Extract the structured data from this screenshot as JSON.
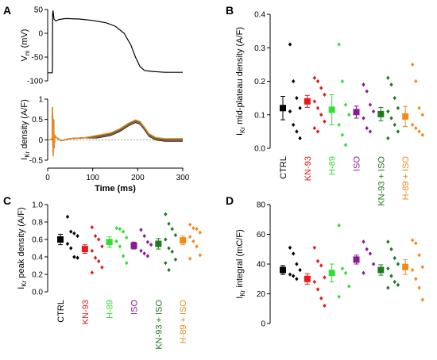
{
  "colors": {
    "CTRL": "#000000",
    "KN-93": "#e41a1c",
    "H-89": "#33dd33",
    "ISO": "#8a1a96",
    "KN-93 + ISO": "#1f7a1f",
    "H-89 + ISO": "#f28a1a"
  },
  "groups": [
    "CTRL",
    "KN-93",
    "H-89",
    "ISO",
    "KN-93 + ISO",
    "H-89 + ISO"
  ],
  "chart_data": [
    {
      "panel": "A",
      "type": "line",
      "traces": [
        {
          "ylabel": "V_m (mV)",
          "ylim": [
            -100,
            50
          ],
          "yticks": [
            -100,
            -50,
            0,
            50
          ],
          "points": [
            [
              0,
              -83
            ],
            [
              5,
              -83
            ],
            [
              10,
              -83
            ],
            [
              10.5,
              -70
            ],
            [
              11,
              40
            ],
            [
              12,
              48
            ],
            [
              14,
              30
            ],
            [
              18,
              26
            ],
            [
              25,
              29
            ],
            [
              40,
              31
            ],
            [
              70,
              30
            ],
            [
              100,
              27
            ],
            [
              130,
              22
            ],
            [
              150,
              15
            ],
            [
              170,
              0
            ],
            [
              185,
              -25
            ],
            [
              195,
              -50
            ],
            [
              205,
              -70
            ],
            [
              215,
              -78
            ],
            [
              230,
              -80
            ],
            [
              260,
              -82
            ],
            [
              300,
              -82
            ]
          ]
        },
        {
          "ylabel": "I_Kr density (A/F)",
          "ylim": [
            -0.5,
            1.0
          ],
          "yticks": [
            -0.5,
            0.0,
            0.5,
            1.0
          ],
          "series_colors": [
            "CTRL",
            "KN-93",
            "H-89",
            "ISO",
            "KN-93 + ISO",
            "H-89 + ISO"
          ],
          "points": [
            [
              0,
              0
            ],
            [
              8,
              0
            ],
            [
              10,
              0.05
            ],
            [
              11,
              0.8
            ],
            [
              12,
              -0.4
            ],
            [
              13,
              0.5
            ],
            [
              14,
              -0.2
            ],
            [
              16,
              0.1
            ],
            [
              20,
              0.05
            ],
            [
              30,
              -0.02
            ],
            [
              50,
              0.03
            ],
            [
              80,
              0.05
            ],
            [
              110,
              0.08
            ],
            [
              140,
              0.14
            ],
            [
              160,
              0.24
            ],
            [
              180,
              0.38
            ],
            [
              195,
              0.46
            ],
            [
              205,
              0.42
            ],
            [
              215,
              0.28
            ],
            [
              225,
              0.12
            ],
            [
              240,
              0.03
            ],
            [
              260,
              0.0
            ],
            [
              300,
              0.0
            ]
          ]
        }
      ],
      "xlabel": "Time (ms)",
      "xlim": [
        0,
        300
      ],
      "xticks": [
        0,
        100,
        200,
        300
      ]
    },
    {
      "panel": "B",
      "type": "scatter",
      "ylabel": "I_Kr mid-plateau density (A/F)",
      "ylim": [
        0,
        0.4
      ],
      "yticks": [
        0.0,
        0.1,
        0.2,
        0.3,
        0.4
      ],
      "ytick_labels": [
        "0.0",
        "0.1",
        "0.2",
        "0.3",
        "0.4"
      ],
      "categories": [
        "CTRL",
        "KN-93",
        "H-89",
        "ISO",
        "KN-93 + ISO",
        "H-89 + ISO"
      ],
      "mean": [
        0.12,
        0.14,
        0.115,
        0.108,
        0.102,
        0.095
      ],
      "sem": [
        0.035,
        0.018,
        0.045,
        0.018,
        0.02,
        0.03
      ],
      "points": [
        [
          0.31,
          0.2,
          0.15,
          0.12,
          0.11,
          0.07,
          0.05,
          0.03
        ],
        [
          0.21,
          0.2,
          0.18,
          0.16,
          0.14,
          0.12,
          0.1,
          0.08,
          0.06,
          0.05
        ],
        [
          0.31,
          0.2,
          0.13,
          0.1,
          0.07,
          0.04,
          0.01
        ],
        [
          0.19,
          0.17,
          0.13,
          0.11,
          0.09,
          0.06,
          0.05
        ],
        [
          0.21,
          0.19,
          0.15,
          0.12,
          0.11,
          0.09,
          0.07,
          0.05,
          0.03
        ],
        [
          0.25,
          0.2,
          0.12,
          0.1,
          0.07,
          0.06,
          0.05,
          0.04
        ]
      ]
    },
    {
      "panel": "C",
      "type": "scatter",
      "ylabel": "I_Kr peak density (A/F)",
      "ylim": [
        0,
        1.0
      ],
      "yticks": [
        0.0,
        0.2,
        0.4,
        0.6,
        0.8,
        1.0
      ],
      "ytick_labels": [
        "0.0",
        "0.2",
        "0.4",
        "0.6",
        "0.8",
        "1.0"
      ],
      "categories": [
        "CTRL",
        "KN-93",
        "H-89",
        "ISO",
        "KN-93 + ISO",
        "H-89 + ISO"
      ],
      "mean": [
        0.6,
        0.49,
        0.57,
        0.53,
        0.55,
        0.59
      ],
      "sem": [
        0.06,
        0.05,
        0.06,
        0.04,
        0.06,
        0.05
      ],
      "points": [
        [
          0.86,
          0.69,
          0.67,
          0.64,
          0.55,
          0.5,
          0.4,
          0.39
        ],
        [
          0.74,
          0.64,
          0.6,
          0.52,
          0.47,
          0.39,
          0.35,
          0.28,
          0.22
        ],
        [
          0.73,
          0.72,
          0.69,
          0.62,
          0.58,
          0.52,
          0.41,
          0.33
        ],
        [
          0.71,
          0.64,
          0.57,
          0.54,
          0.47,
          0.44,
          0.41
        ],
        [
          0.89,
          0.78,
          0.72,
          0.65,
          0.6,
          0.5,
          0.46,
          0.37,
          0.33,
          0.25
        ],
        [
          0.77,
          0.73,
          0.72,
          0.68,
          0.63,
          0.58,
          0.52,
          0.42,
          0.38
        ]
      ]
    },
    {
      "panel": "D",
      "type": "scatter",
      "ylabel": "I_Kr integral (mC/F)",
      "ylim": [
        0,
        80
      ],
      "yticks": [
        0,
        20,
        40,
        60,
        80
      ],
      "ytick_labels": [
        "0",
        "20",
        "40",
        "60",
        "80"
      ],
      "categories": [
        "CTRL",
        "KN-93",
        "H-89",
        "ISO",
        "KN-93 + ISO",
        "H-89 + ISO"
      ],
      "mean": [
        36,
        30,
        34,
        43,
        36,
        38
      ],
      "sem": [
        3,
        3.5,
        6,
        3,
        3.5,
        5
      ],
      "points": [
        [
          51,
          47,
          40,
          36,
          33,
          32,
          30
        ],
        [
          51,
          42,
          39,
          31,
          28,
          23,
          17,
          12
        ],
        [
          66,
          37,
          34,
          25,
          18
        ],
        [
          55,
          50,
          47,
          40,
          34
        ],
        [
          55,
          50,
          44,
          40,
          37,
          32,
          28,
          26,
          24
        ],
        [
          56,
          54,
          46,
          38,
          36,
          30,
          24,
          16
        ]
      ]
    }
  ]
}
